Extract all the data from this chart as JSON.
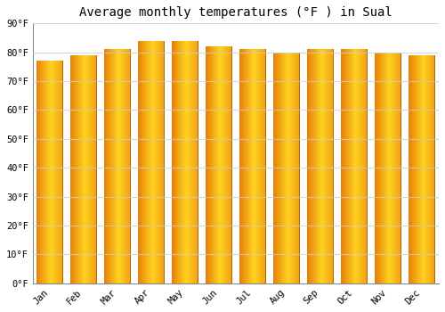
{
  "title": "Average monthly temperatures (°F ) in Sual",
  "months": [
    "Jan",
    "Feb",
    "Mar",
    "Apr",
    "May",
    "Jun",
    "Jul",
    "Aug",
    "Sep",
    "Oct",
    "Nov",
    "Dec"
  ],
  "values": [
    77,
    79,
    81,
    84,
    84,
    82,
    81,
    80,
    81,
    81,
    80,
    79
  ],
  "ylim": [
    0,
    90
  ],
  "yticks": [
    0,
    10,
    20,
    30,
    40,
    50,
    60,
    70,
    80,
    90
  ],
  "ytick_labels": [
    "0°F",
    "10°F",
    "20°F",
    "30°F",
    "40°F",
    "50°F",
    "60°F",
    "70°F",
    "80°F",
    "90°F"
  ],
  "bar_color_dark": "#E8800A",
  "bar_color_light": "#FFD020",
  "bar_edge_color": "#C07010",
  "background_color": "#FFFFFF",
  "grid_color": "#CCCCCC",
  "title_fontsize": 10,
  "tick_fontsize": 7.5
}
